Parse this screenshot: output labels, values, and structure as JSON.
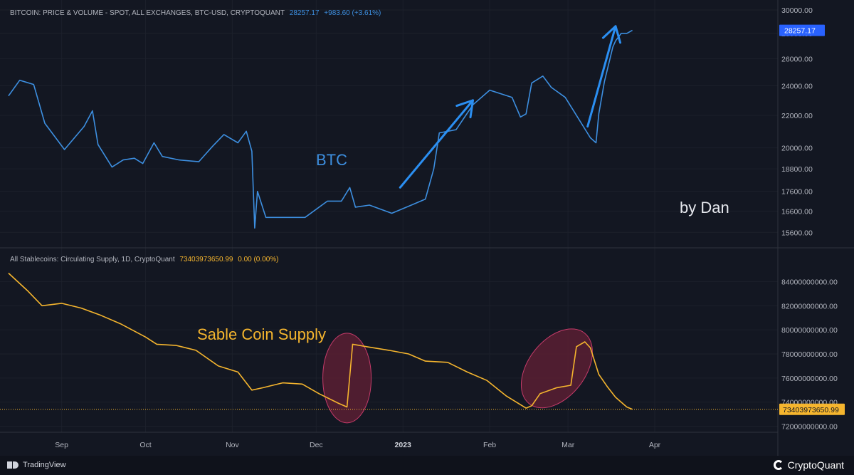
{
  "top_legend": {
    "title": "BITCOIN: PRICE & VOLUME - SPOT, ALL EXCHANGES, BTC-USD, CRYPTOQUANT",
    "last": "28257.17",
    "change": "+983.60 (+3.61%)"
  },
  "bottom_legend": {
    "title": "All Stablecoins: Circulating Supply, 1D, CryptoQuant",
    "last": "73403973650.99",
    "change": "0.00 (0.00%)"
  },
  "annotations": {
    "btc": "BTC",
    "author": "by Dan",
    "supply": "Sable Coin Supply"
  },
  "footer": {
    "tradingview": "TradingView",
    "cryptoquant": "CryptoQuant"
  },
  "colors": {
    "background": "#131722",
    "btc_line": "#3d8fe0",
    "arrow": "#2b8ff2",
    "supply_line": "#f5b52e",
    "ellipse_fill": "#5a1e32",
    "ellipse_stroke": "#c63b6a",
    "axis_text": "#b2b5be"
  },
  "chart_data": [
    {
      "type": "line",
      "series": [
        {
          "name": "BITCOIN: PRICE & VOLUME - SPOT, ALL EXCHANGES, BTC-USD",
          "x": [
            "2022-08-13",
            "2022-08-17",
            "2022-08-22",
            "2022-08-26",
            "2022-09-02",
            "2022-09-09",
            "2022-09-12",
            "2022-09-14",
            "2022-09-19",
            "2022-09-23",
            "2022-09-27",
            "2022-09-30",
            "2022-10-04",
            "2022-10-07",
            "2022-10-13",
            "2022-10-20",
            "2022-10-25",
            "2022-10-29",
            "2022-11-03",
            "2022-11-06",
            "2022-11-08",
            "2022-11-09",
            "2022-11-10",
            "2022-11-13",
            "2022-11-21",
            "2022-11-27",
            "2022-12-05",
            "2022-12-10",
            "2022-12-13",
            "2022-12-15",
            "2022-12-20",
            "2022-12-28",
            "2023-01-04",
            "2023-01-09",
            "2023-01-12",
            "2023-01-14",
            "2023-01-20",
            "2023-01-26",
            "2023-02-01",
            "2023-02-09",
            "2023-02-12",
            "2023-02-14",
            "2023-02-16",
            "2023-02-20",
            "2023-02-23",
            "2023-02-28",
            "2023-03-03",
            "2023-03-09",
            "2023-03-11",
            "2023-03-12",
            "2023-03-14",
            "2023-03-17",
            "2023-03-18",
            "2023-03-20",
            "2023-03-22",
            "2023-03-24"
          ],
          "values": [
            23300,
            24400,
            24100,
            21500,
            19900,
            21300,
            22300,
            20200,
            18900,
            19300,
            19400,
            19100,
            20300,
            19500,
            19300,
            19200,
            20100,
            20800,
            20300,
            21000,
            19800,
            15800,
            17600,
            16300,
            16300,
            16300,
            17100,
            17100,
            17800,
            16800,
            16900,
            16500,
            16900,
            17200,
            18800,
            20900,
            21100,
            22700,
            23700,
            23200,
            21900,
            22100,
            24200,
            24700,
            23900,
            23200,
            22300,
            20600,
            20300,
            22100,
            24300,
            26900,
            27400,
            28000,
            28000,
            28257.17
          ],
          "ylim": [
            15000,
            30000
          ],
          "yticks": [
            "30000.00",
            "28000.00",
            "26000.00",
            "24000.00",
            "22000.00",
            "20000.00",
            "18800.00",
            "17600.00",
            "16600.00",
            "15600.00"
          ],
          "ytick_values": [
            30000,
            28000,
            26000,
            24000,
            22000,
            20000,
            18800,
            17600,
            16600,
            15600
          ],
          "scale": "log"
        }
      ]
    },
    {
      "type": "line",
      "series": [
        {
          "name": "All Stablecoins: Circulating Supply",
          "x": [
            "2022-08-13",
            "2022-08-20",
            "2022-08-25",
            "2022-09-01",
            "2022-09-08",
            "2022-09-15",
            "2022-09-22",
            "2022-10-01",
            "2022-10-05",
            "2022-10-12",
            "2022-10-19",
            "2022-10-27",
            "2022-11-03",
            "2022-11-08",
            "2022-11-12",
            "2022-11-19",
            "2022-11-26",
            "2022-12-02",
            "2022-12-09",
            "2022-12-12",
            "2022-12-14",
            "2022-12-19",
            "2022-12-27",
            "2023-01-03",
            "2023-01-09",
            "2023-01-17",
            "2023-01-24",
            "2023-01-31",
            "2023-02-07",
            "2023-02-14",
            "2023-02-16",
            "2023-02-19",
            "2023-02-25",
            "2023-03-02",
            "2023-03-04",
            "2023-03-07",
            "2023-03-09",
            "2023-03-12",
            "2023-03-15",
            "2023-03-18",
            "2023-03-22",
            "2023-03-24"
          ],
          "values": [
            84700000000,
            83200000000,
            82000000000,
            82200000000,
            81800000000,
            81200000000,
            80500000000,
            79400000000,
            78800000000,
            78700000000,
            78300000000,
            77000000000,
            76500000000,
            75000000000,
            75200000000,
            75600000000,
            75500000000,
            74700000000,
            73900000000,
            73600000000,
            78800000000,
            78600000000,
            78300000000,
            78000000000,
            77400000000,
            77300000000,
            76500000000,
            75800000000,
            74500000000,
            73500000000,
            73700000000,
            74700000000,
            75200000000,
            75400000000,
            78600000000,
            79000000000,
            78500000000,
            76300000000,
            75300000000,
            74400000000,
            73600000000,
            73403973650.99
          ],
          "ylim": [
            71500000000,
            85500000000
          ],
          "yticks": [
            "84000000000.00",
            "82000000000.00",
            "80000000000.00",
            "78000000000.00",
            "76000000000.00",
            "74000000000.00",
            "72000000000.00"
          ],
          "ytick_values": [
            84000000000,
            82000000000,
            80000000000,
            78000000000,
            76000000000,
            74000000000,
            72000000000
          ]
        }
      ],
      "xlim": [
        "2022-08-12",
        "2023-05-15"
      ],
      "xticks": [
        {
          "label": "Sep",
          "date": "2022-09-01"
        },
        {
          "label": "Oct",
          "date": "2022-10-01"
        },
        {
          "label": "Nov",
          "date": "2022-11-01"
        },
        {
          "label": "Dec",
          "date": "2022-12-01"
        },
        {
          "label": "2023",
          "date": "2023-01-01",
          "bold": true
        },
        {
          "label": "Feb",
          "date": "2023-02-01"
        },
        {
          "label": "Mar",
          "date": "2023-03-01"
        },
        {
          "label": "Apr",
          "date": "2023-04-01"
        }
      ]
    }
  ]
}
